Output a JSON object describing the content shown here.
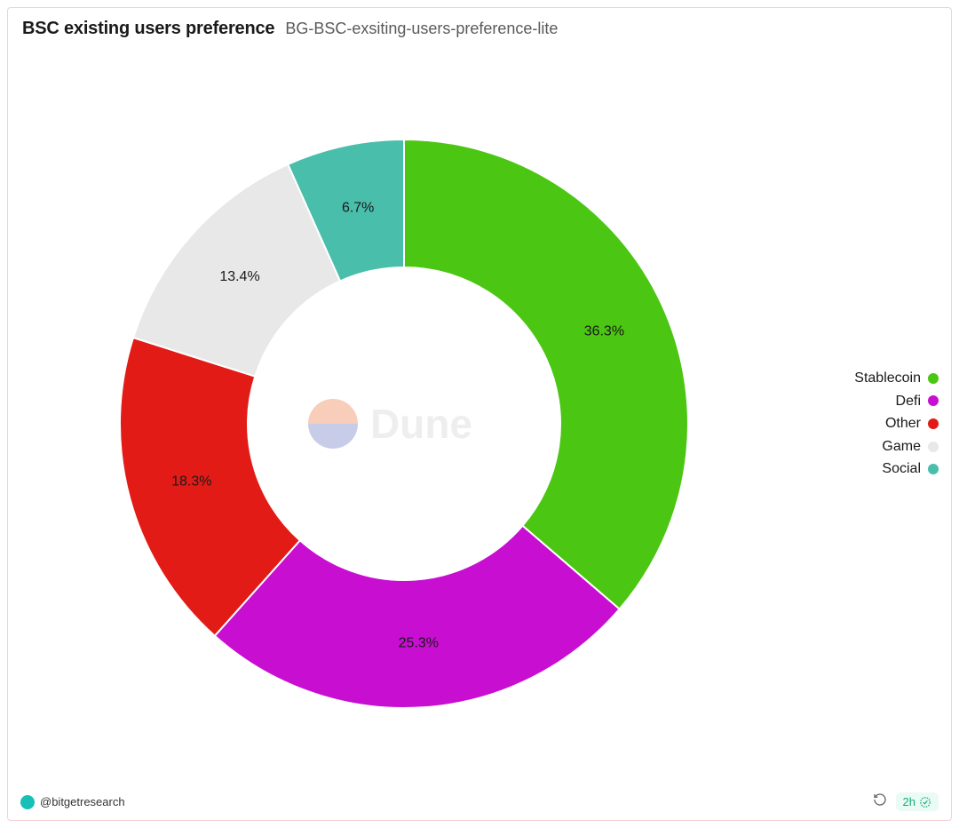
{
  "header": {
    "title": "BSC existing users preference",
    "subtitle": "BG-BSC-exsiting-users-preference-lite"
  },
  "chart": {
    "type": "donut",
    "inner_radius_ratio": 0.55,
    "outer_radius": 320,
    "background_color": "#ffffff",
    "border_color": "#f7cfcf",
    "slices": [
      {
        "label": "Stablecoin",
        "value": 36.3,
        "color": "#4bc612",
        "text": "36.3%"
      },
      {
        "label": "Defi",
        "value": 25.3,
        "color": "#c70ed1",
        "text": "25.3%"
      },
      {
        "label": "Other",
        "value": 18.3,
        "color": "#e31b16",
        "text": "18.3%"
      },
      {
        "label": "Game",
        "value": 13.4,
        "color": "#e8e8e8",
        "text": "13.4%"
      },
      {
        "label": "Social",
        "value": 6.7,
        "color": "#48beab",
        "text": "6.7%"
      }
    ],
    "label_fontsize": 16,
    "label_color": "#1a1a1a",
    "watermark": {
      "text": "Dune",
      "logo_top_color": "#f4a582",
      "logo_bottom_color": "#9aa4d6",
      "text_color": "#c7c7c7"
    }
  },
  "legend": {
    "position": "right",
    "dot_size": 12,
    "fontsize": 16
  },
  "footer": {
    "avatar_color": "#16c0b6",
    "handle": "@bitgetresearch",
    "time_badge": "2h",
    "badge_bg": "#eafaf4",
    "badge_color": "#13ab7a"
  }
}
